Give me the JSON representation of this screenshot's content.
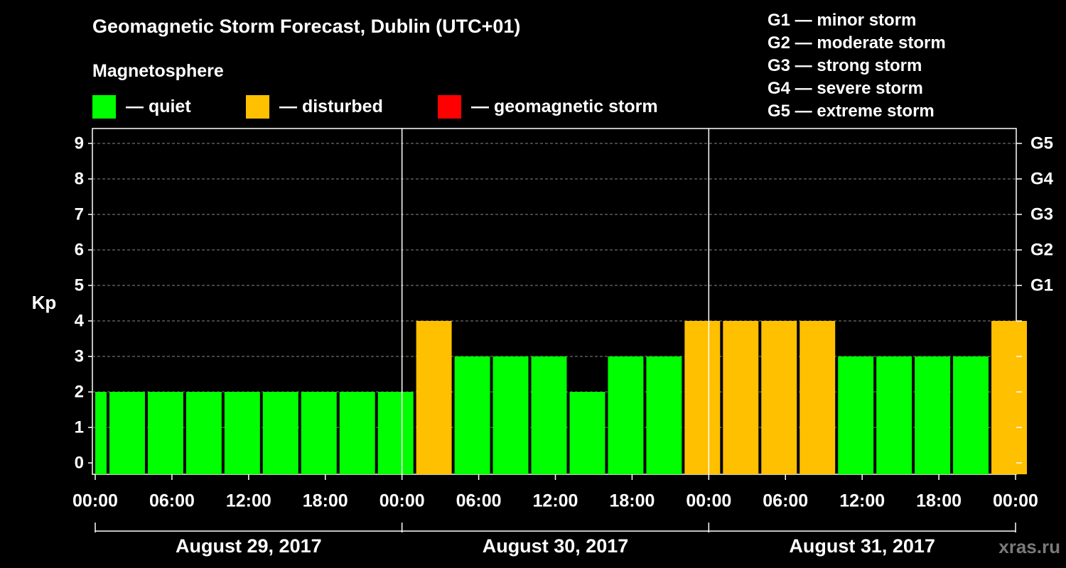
{
  "header": {
    "title": "Geomagnetic Storm Forecast, Dublin (UTC+01)",
    "section_label": "Magnetosphere"
  },
  "legend": {
    "items": [
      {
        "label": "— quiet",
        "color": "#00ff00"
      },
      {
        "label": "— disturbed",
        "color": "#ffc000"
      },
      {
        "label": "— geomagnetic storm",
        "color": "#ff0000"
      }
    ]
  },
  "storm_scale": [
    "G1 — minor storm",
    "G2 — moderate storm",
    "G3 — strong storm",
    "G4 — severe storm",
    "G5 — extreme storm"
  ],
  "watermark": "xras.ru",
  "chart_data": {
    "type": "bar",
    "title": "Geomagnetic Storm Forecast, Dublin (UTC+01)",
    "ylabel": "Kp",
    "ylim": [
      0,
      9
    ],
    "y_ticks": [
      0,
      1,
      2,
      3,
      4,
      5,
      6,
      7,
      8,
      9
    ],
    "right_axis_labels": [
      {
        "kp": 5,
        "label": "G1"
      },
      {
        "kp": 6,
        "label": "G2"
      },
      {
        "kp": 7,
        "label": "G3"
      },
      {
        "kp": 8,
        "label": "G4"
      },
      {
        "kp": 9,
        "label": "G5"
      }
    ],
    "x_tick_labels": [
      "00:00",
      "06:00",
      "12:00",
      "18:00",
      "00:00",
      "06:00",
      "12:00",
      "18:00",
      "00:00",
      "06:00",
      "12:00",
      "18:00",
      "00:00"
    ],
    "x_range_hours": [
      0,
      72
    ],
    "days": [
      "August 29, 2017",
      "August 30, 2017",
      "August 31, 2017"
    ],
    "grid": true,
    "bars": [
      {
        "start": -2,
        "end": 1,
        "value": 2,
        "level": "quiet"
      },
      {
        "start": 1,
        "end": 4,
        "value": 2,
        "level": "quiet"
      },
      {
        "start": 4,
        "end": 7,
        "value": 2,
        "level": "quiet"
      },
      {
        "start": 7,
        "end": 10,
        "value": 2,
        "level": "quiet"
      },
      {
        "start": 10,
        "end": 13,
        "value": 2,
        "level": "quiet"
      },
      {
        "start": 13,
        "end": 16,
        "value": 2,
        "level": "quiet"
      },
      {
        "start": 16,
        "end": 19,
        "value": 2,
        "level": "quiet"
      },
      {
        "start": 19,
        "end": 22,
        "value": 2,
        "level": "quiet"
      },
      {
        "start": 22,
        "end": 25,
        "value": 2,
        "level": "quiet"
      },
      {
        "start": 25,
        "end": 28,
        "value": 4,
        "level": "disturbed"
      },
      {
        "start": 28,
        "end": 31,
        "value": 3,
        "level": "quiet"
      },
      {
        "start": 31,
        "end": 34,
        "value": 3,
        "level": "quiet"
      },
      {
        "start": 34,
        "end": 37,
        "value": 3,
        "level": "quiet"
      },
      {
        "start": 37,
        "end": 40,
        "value": 2,
        "level": "quiet"
      },
      {
        "start": 40,
        "end": 43,
        "value": 3,
        "level": "quiet"
      },
      {
        "start": 43,
        "end": 46,
        "value": 3,
        "level": "quiet"
      },
      {
        "start": 46,
        "end": 49,
        "value": 4,
        "level": "disturbed"
      },
      {
        "start": 49,
        "end": 52,
        "value": 4,
        "level": "disturbed"
      },
      {
        "start": 52,
        "end": 55,
        "value": 4,
        "level": "disturbed"
      },
      {
        "start": 55,
        "end": 58,
        "value": 4,
        "level": "disturbed"
      },
      {
        "start": 58,
        "end": 61,
        "value": 3,
        "level": "quiet"
      },
      {
        "start": 61,
        "end": 64,
        "value": 3,
        "level": "quiet"
      },
      {
        "start": 64,
        "end": 67,
        "value": 3,
        "level": "quiet"
      },
      {
        "start": 67,
        "end": 70,
        "value": 3,
        "level": "quiet"
      },
      {
        "start": 70,
        "end": 73,
        "value": 4,
        "level": "disturbed"
      }
    ],
    "level_colors": {
      "quiet": "#00ff00",
      "disturbed": "#ffc000",
      "storm": "#ff0000"
    }
  }
}
